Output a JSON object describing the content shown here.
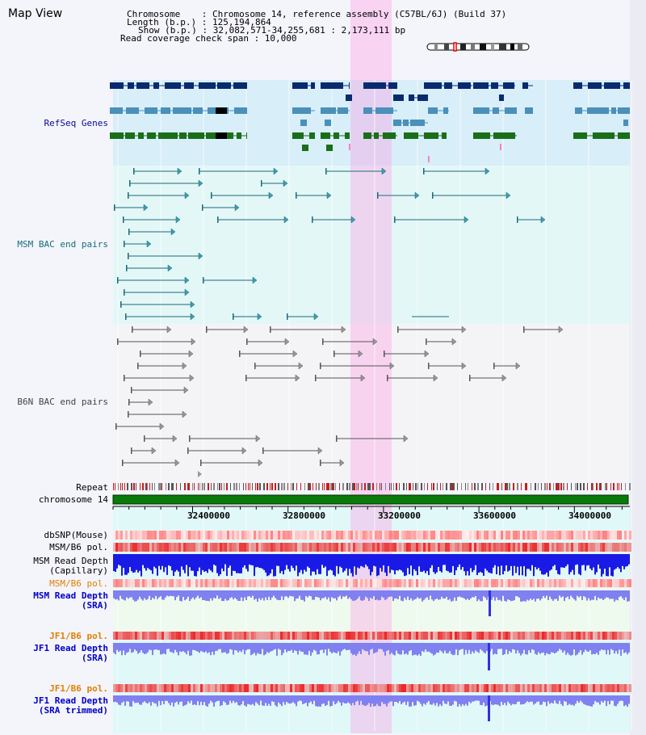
{
  "title": "Map View",
  "header": {
    "line1": "Chromosome    : Chromosome 14, reference assembly (C57BL/6J) (Build 37)",
    "line2": "Length (b.p.) : 125,194,864",
    "line3": "Show (b.p.) : 32,082,571-34,255,681 : 2,173,111 bp",
    "line4": "Read coverage check span : 10,000"
  },
  "tracks": {
    "refseq": "RefSeq Genes",
    "msm_bac": "MSM BAC end pairs",
    "b6n_bac": "B6N BAC end pairs",
    "repeat": "Repeat",
    "chromosome": "chromosome 14",
    "dbsnp": "dbSNP(Mouse)",
    "msm_pol": "MSM/B6 pol.",
    "msm_depth_cap_1": "MSM Read Depth",
    "msm_depth_cap_2": "(Capillary)",
    "msm_pol_2": "MSM/B6 pol.",
    "msm_depth_sra_1": "MSM Read Depth",
    "msm_depth_sra_2": "(SRA)",
    "jf1_pol": "JF1/B6 pol.",
    "jf1_depth_1": "JF1 Read Depth",
    "jf1_depth_2": "(SRA)",
    "jf1_pol_2": "JF1/B6 pol.",
    "jf1_trim_1": "JF1 Read Depth",
    "jf1_trim_2": "(SRA trimmed)"
  },
  "axis_ticks": [
    "32400000",
    "32800000",
    "33200000",
    "33600000",
    "34000000"
  ],
  "colors": {
    "refseq_label": "#0a0a8c",
    "msm_label": "#146e7a",
    "orange": "#e08000",
    "blue": "#0000c8"
  }
}
